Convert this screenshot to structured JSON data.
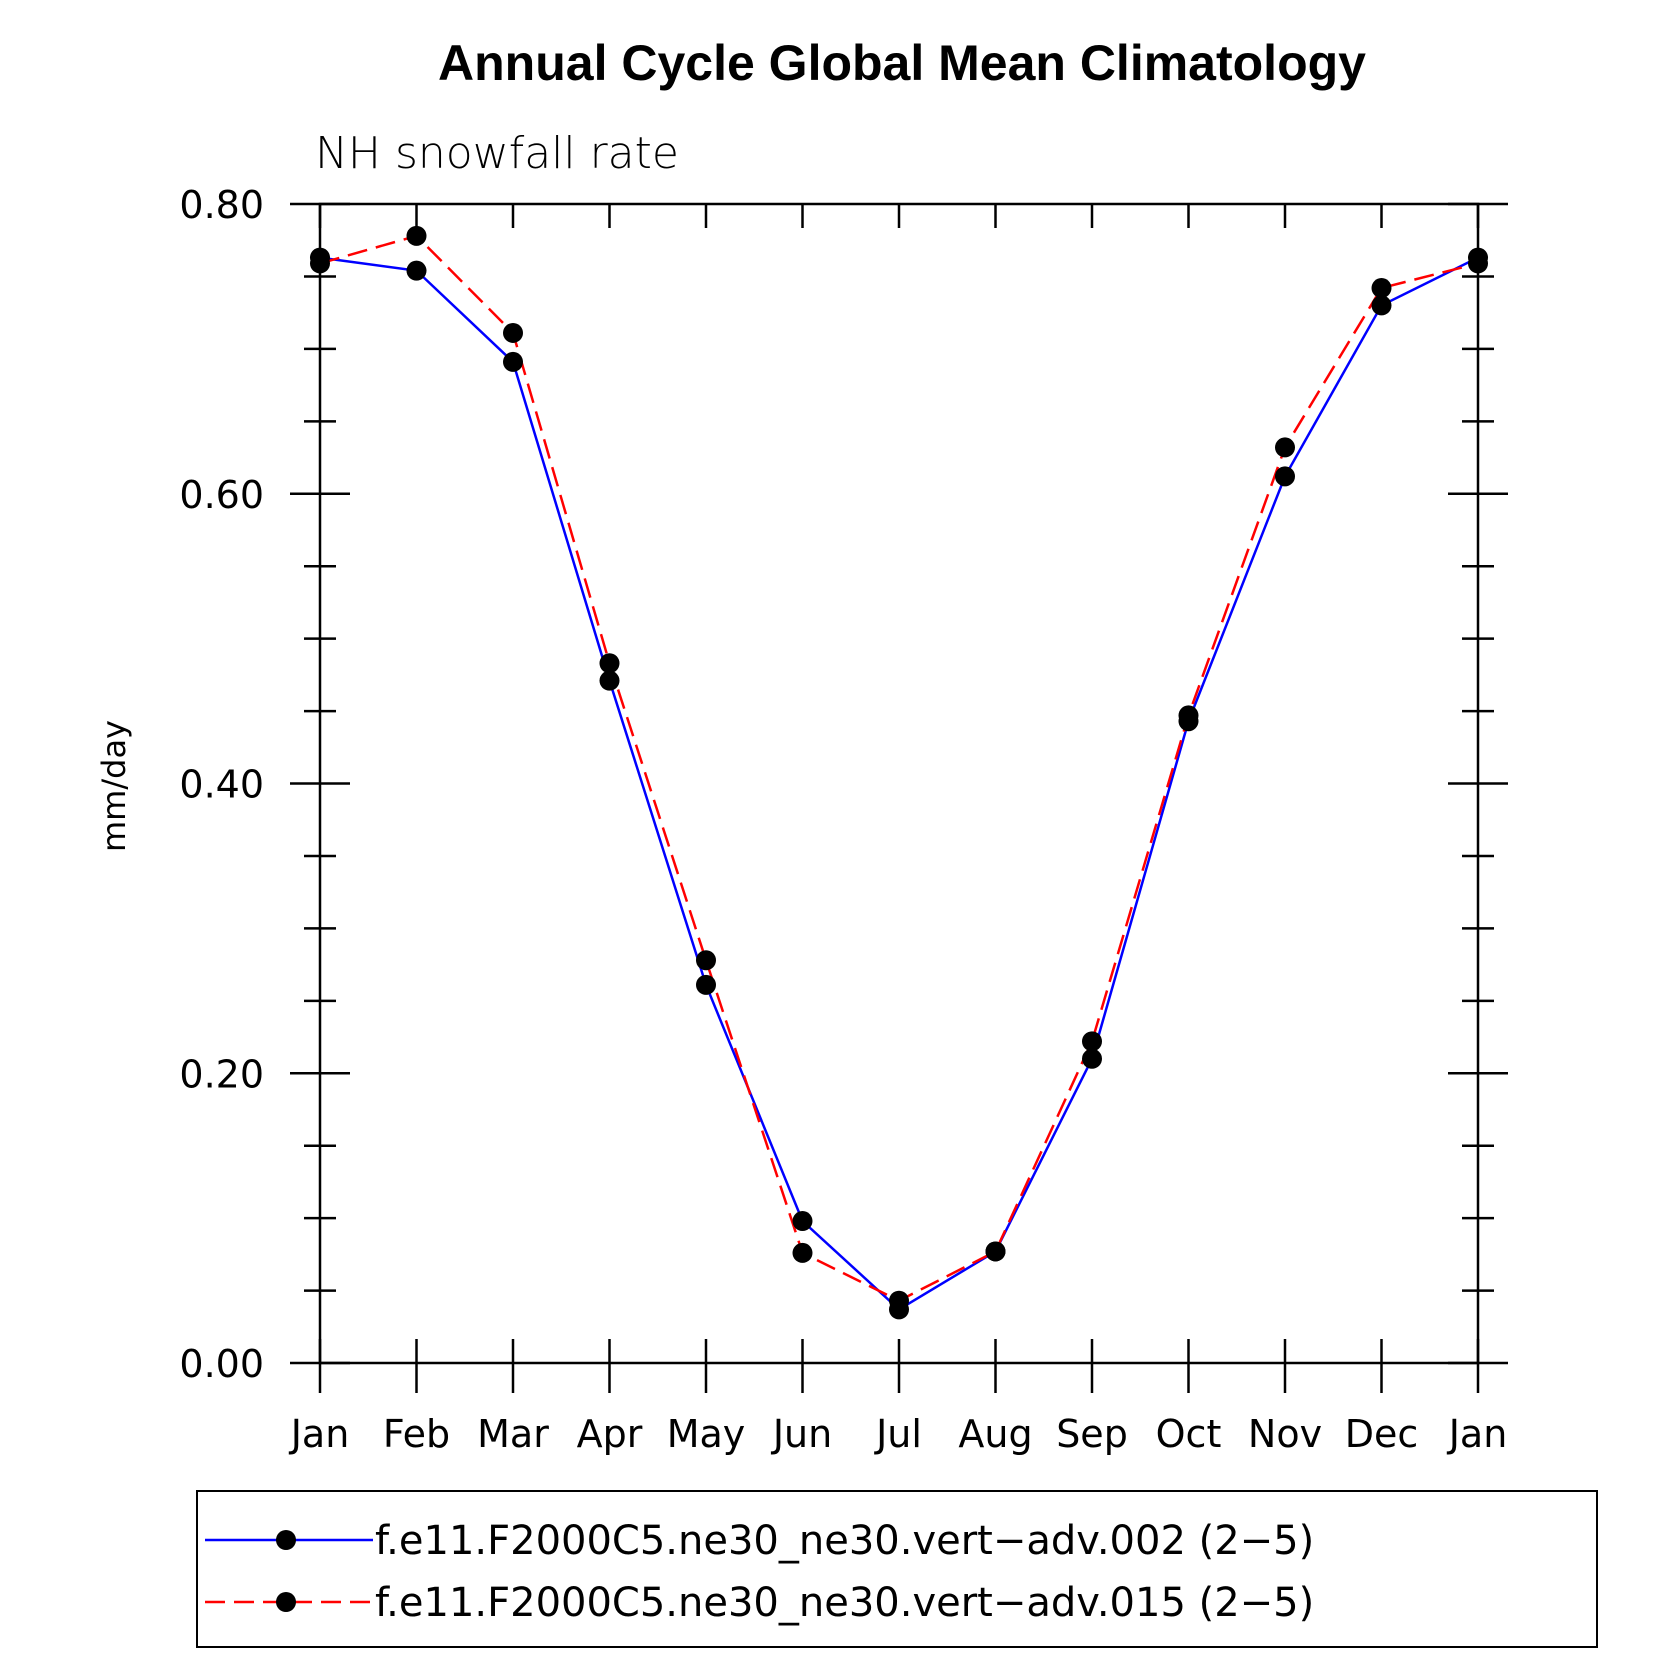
{
  "chart_data": {
    "type": "line",
    "title": "Annual Cycle Global Mean Climatology",
    "subtitle": "NH snowfall rate",
    "ylabel": "mm/day",
    "xlabel": "",
    "categories": [
      "Jan",
      "Feb",
      "Mar",
      "Apr",
      "May",
      "Jun",
      "Jul",
      "Aug",
      "Sep",
      "Oct",
      "Nov",
      "Dec",
      "Jan"
    ],
    "ylim": [
      0,
      0.8
    ],
    "yticks": [
      "0.00",
      "0.20",
      "0.40",
      "0.60",
      "0.80"
    ],
    "series": [
      {
        "name": "f.e11.F2000C5.ne30_ne30.vert−adv.002 (2−5)",
        "color": "#0000ff",
        "dash": "solid",
        "marker": "filled-circle",
        "values": [
          0.763,
          0.754,
          0.691,
          0.471,
          0.261,
          0.098,
          0.037,
          0.077,
          0.21,
          0.443,
          0.612,
          0.73,
          0.763
        ]
      },
      {
        "name": "f.e11.F2000C5.ne30_ne30.vert−adv.015 (2−5)",
        "color": "#ff0000",
        "dash": "dashed",
        "marker": "filled-circle",
        "values": [
          0.759,
          0.778,
          0.711,
          0.483,
          0.278,
          0.076,
          0.043,
          0.077,
          0.222,
          0.447,
          0.632,
          0.742,
          0.759
        ]
      }
    ],
    "grid": false,
    "legend_position": "bottom"
  }
}
